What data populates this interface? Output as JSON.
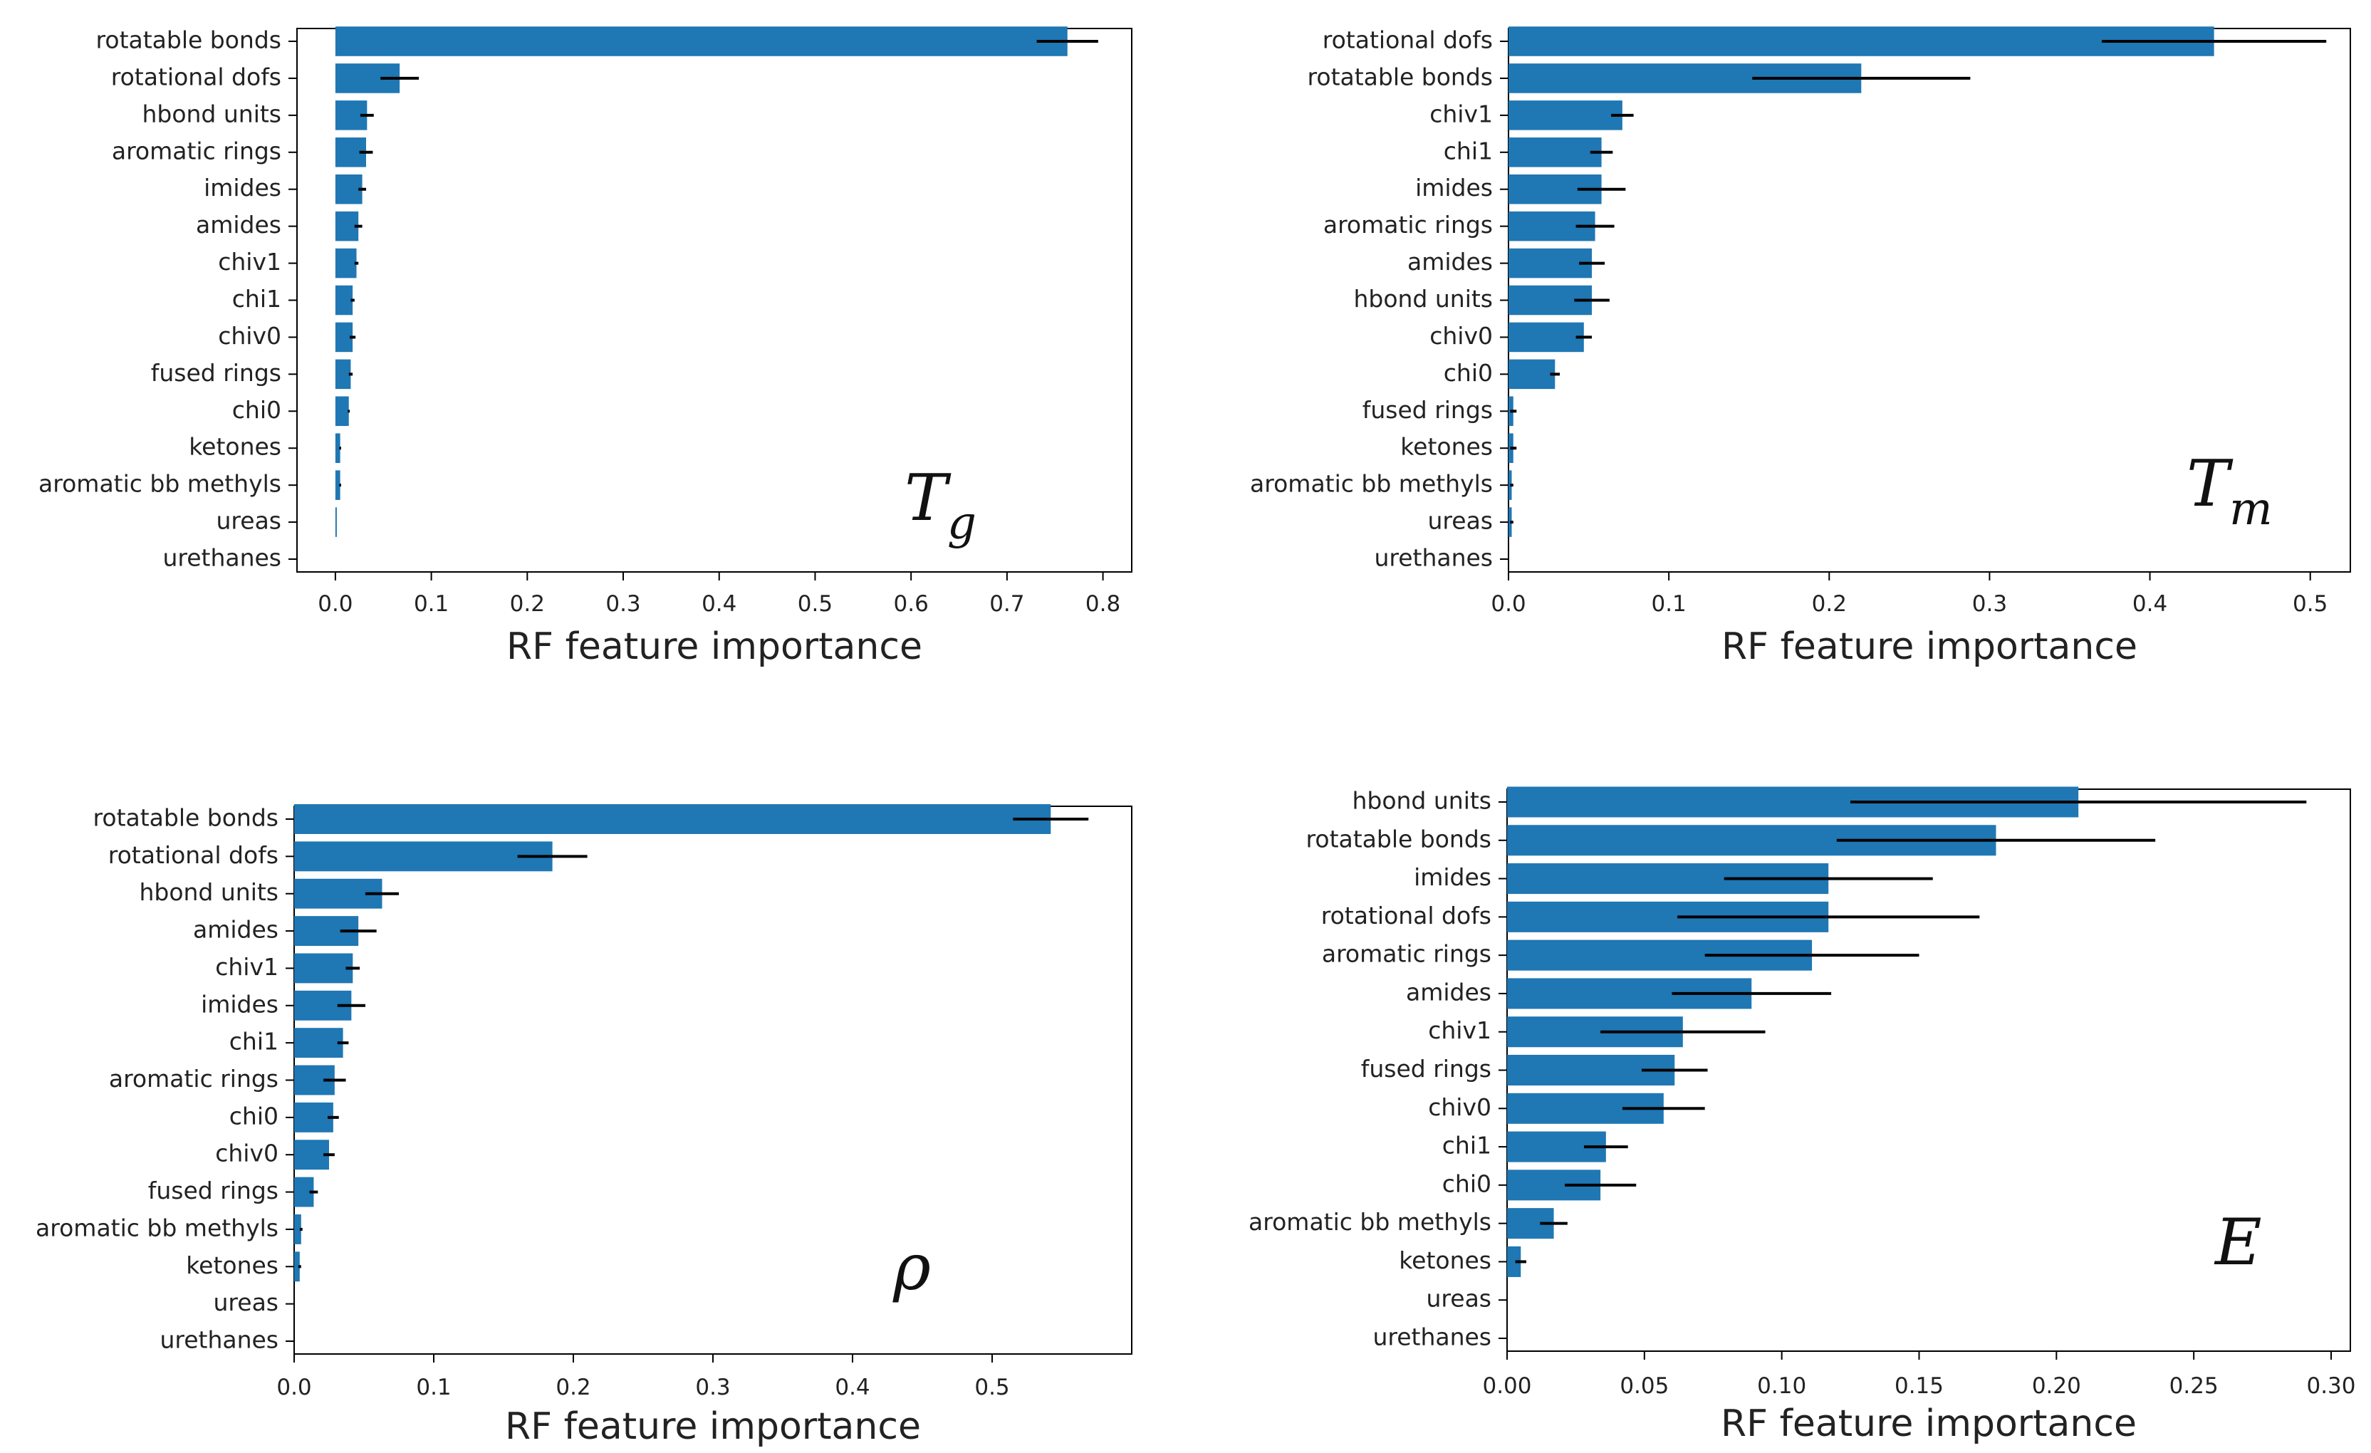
{
  "chart_data": [
    {
      "type": "bar",
      "orientation": "horizontal",
      "panel_symbol": "T",
      "panel_subscript": "g",
      "xlabel": "RF feature importance",
      "xlim": [
        -0.04,
        0.83
      ],
      "xticks": [
        "0.0",
        "0.1",
        "0.2",
        "0.3",
        "0.4",
        "0.5",
        "0.6",
        "0.7",
        "0.8"
      ],
      "xtick_values": [
        0,
        0.1,
        0.2,
        0.3,
        0.4,
        0.5,
        0.6,
        0.7,
        0.8
      ],
      "color": "#1f77b4",
      "categories": [
        "rotatable bonds",
        "rotational dofs",
        "hbond units",
        "aromatic rings",
        "imides",
        "amides",
        "chiv1",
        "chi1",
        "chiv0",
        "fused rings",
        "chi0",
        "ketones",
        "aromatic bb methyls",
        "ureas",
        "urethanes"
      ],
      "values": [
        0.763,
        0.067,
        0.033,
        0.032,
        0.028,
        0.024,
        0.022,
        0.018,
        0.018,
        0.016,
        0.014,
        0.005,
        0.005,
        0.001,
        0.0
      ],
      "errors": [
        0.032,
        0.02,
        0.007,
        0.007,
        0.004,
        0.004,
        0.002,
        0.002,
        0.003,
        0.002,
        0.001,
        0.001,
        0.001,
        0.0,
        0.0
      ]
    },
    {
      "type": "bar",
      "orientation": "horizontal",
      "panel_symbol": "T",
      "panel_subscript": "m",
      "xlabel": "RF feature importance",
      "xlim": [
        0.0,
        0.525
      ],
      "xticks": [
        "0.0",
        "0.1",
        "0.2",
        "0.3",
        "0.4",
        "0.5"
      ],
      "xtick_values": [
        0,
        0.1,
        0.2,
        0.3,
        0.4,
        0.5
      ],
      "color": "#1f77b4",
      "categories": [
        "rotational dofs",
        "rotatable bonds",
        "chiv1",
        "chi1",
        "imides",
        "aromatic rings",
        "amides",
        "hbond units",
        "chiv0",
        "chi0",
        "fused rings",
        "ketones",
        "aromatic bb methyls",
        "ureas",
        "urethanes"
      ],
      "values": [
        0.44,
        0.22,
        0.071,
        0.058,
        0.058,
        0.054,
        0.052,
        0.052,
        0.047,
        0.029,
        0.003,
        0.003,
        0.002,
        0.002,
        0.0
      ],
      "errors": [
        0.07,
        0.068,
        0.007,
        0.007,
        0.015,
        0.012,
        0.008,
        0.011,
        0.005,
        0.003,
        0.002,
        0.002,
        0.001,
        0.001,
        0.0
      ]
    },
    {
      "type": "bar",
      "orientation": "horizontal",
      "panel_symbol": "ρ",
      "panel_subscript": "",
      "xlabel": "RF feature importance",
      "xlim": [
        0.0,
        0.6
      ],
      "xticks": [
        "0.0",
        "0.1",
        "0.2",
        "0.3",
        "0.4",
        "0.5"
      ],
      "xtick_values": [
        0,
        0.1,
        0.2,
        0.3,
        0.4,
        0.5
      ],
      "color": "#1f77b4",
      "categories": [
        "rotatable bonds",
        "rotational dofs",
        "hbond units",
        "amides",
        "chiv1",
        "imides",
        "chi1",
        "aromatic rings",
        "chi0",
        "chiv0",
        "fused rings",
        "aromatic bb methyls",
        "ketones",
        "ureas",
        "urethanes"
      ],
      "values": [
        0.542,
        0.185,
        0.063,
        0.046,
        0.042,
        0.041,
        0.035,
        0.029,
        0.028,
        0.025,
        0.014,
        0.005,
        0.004,
        0.0,
        0.0
      ],
      "errors": [
        0.027,
        0.025,
        0.012,
        0.013,
        0.005,
        0.01,
        0.004,
        0.008,
        0.004,
        0.004,
        0.003,
        0.001,
        0.001,
        0.0,
        0.0
      ]
    },
    {
      "type": "bar",
      "orientation": "horizontal",
      "panel_symbol": "E",
      "panel_subscript": "",
      "xlabel": "RF feature importance",
      "xlim": [
        0.0,
        0.307
      ],
      "xticks": [
        "0.00",
        "0.05",
        "0.10",
        "0.15",
        "0.20",
        "0.25",
        "0.30"
      ],
      "xtick_values": [
        0,
        0.05,
        0.1,
        0.15,
        0.2,
        0.25,
        0.3
      ],
      "color": "#1f77b4",
      "categories": [
        "hbond units",
        "rotatable bonds",
        "imides",
        "rotational dofs",
        "aromatic rings",
        "amides",
        "chiv1",
        "fused rings",
        "chiv0",
        "chi1",
        "chi0",
        "aromatic bb methyls",
        "ketones",
        "ureas",
        "urethanes"
      ],
      "values": [
        0.208,
        0.178,
        0.117,
        0.117,
        0.111,
        0.089,
        0.064,
        0.061,
        0.057,
        0.036,
        0.034,
        0.017,
        0.005,
        0.0,
        0.0
      ],
      "errors": [
        0.083,
        0.058,
        0.038,
        0.055,
        0.039,
        0.029,
        0.03,
        0.012,
        0.015,
        0.008,
        0.013,
        0.005,
        0.002,
        0.0,
        0.0
      ]
    }
  ]
}
